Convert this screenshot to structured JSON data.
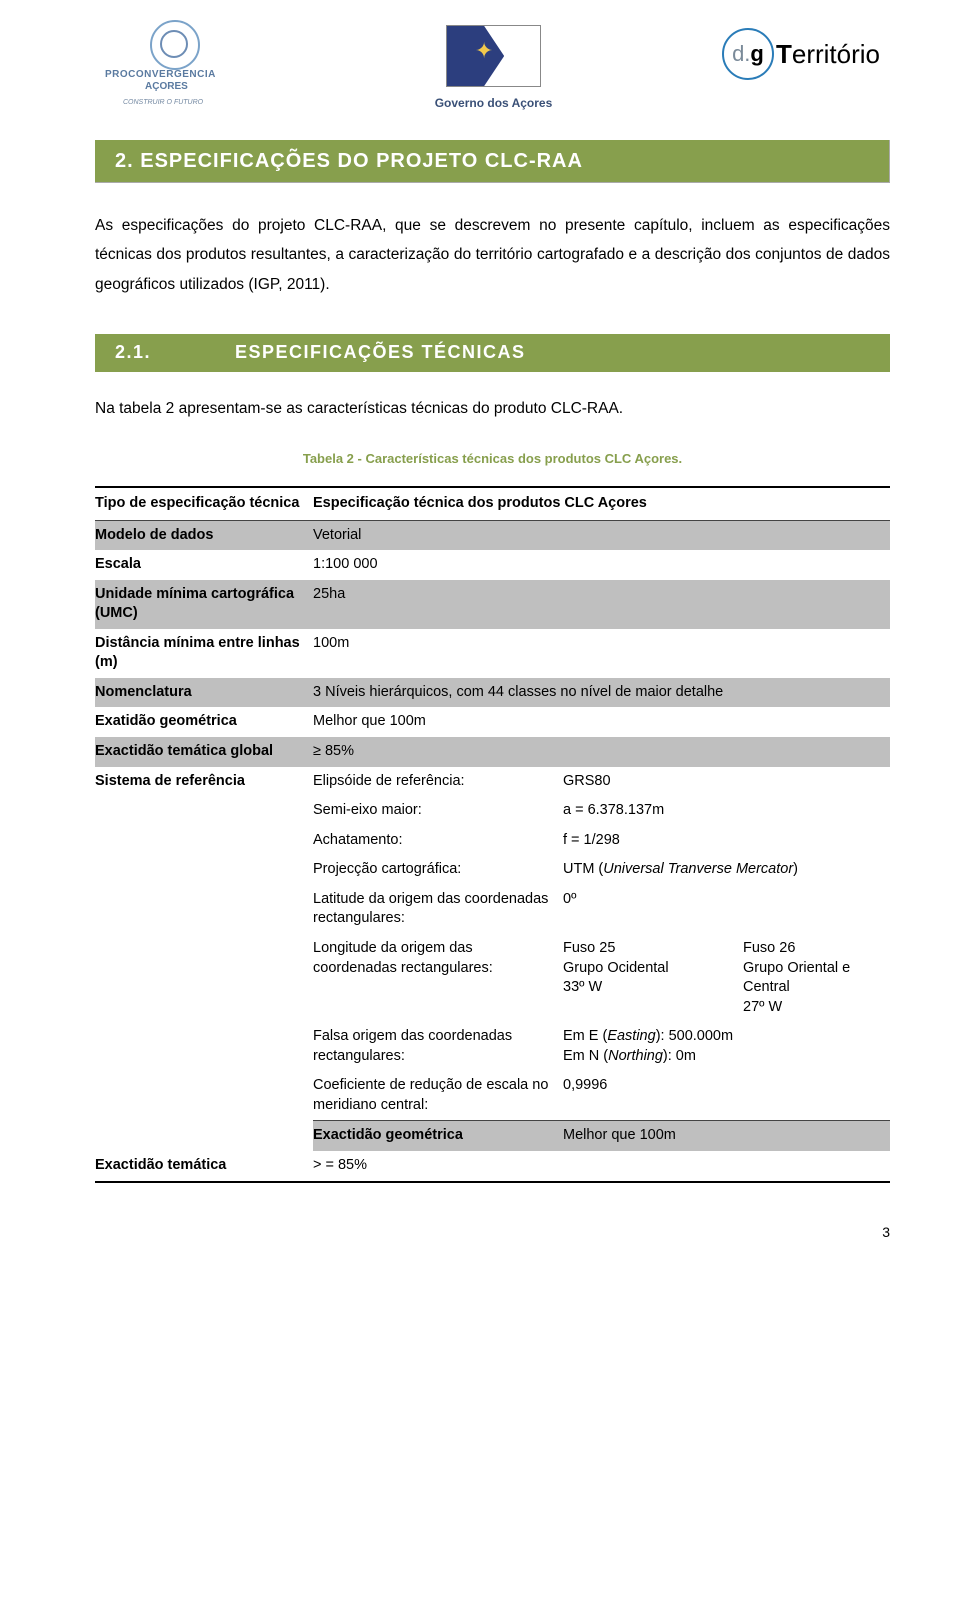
{
  "header": {
    "logo_left_line1": "PROCONVERGENCIA",
    "logo_left_line2": "AÇORES",
    "logo_left_tag": "CONSTRUIR O FUTURO",
    "gov_text": "Governo dos Açores",
    "dg_inner": "d.g",
    "dg_text": "Território"
  },
  "section": {
    "num": "2.",
    "title": "ESPECIFICAÇÕES DO PROJETO CLC-RAA"
  },
  "para1": "As especificações do projeto CLC-RAA, que se descrevem no presente capítulo, incluem as especificações técnicas dos produtos resultantes, a caracterização do território cartografado e a descrição dos conjuntos de dados geográficos utilizados (IGP, 2011).",
  "subsection": {
    "num": "2.1.",
    "title": "ESPECIFICAÇÕES TÉCNICAS"
  },
  "para2": "Na tabela 2 apresentam-se as características técnicas do produto CLC-RAA.",
  "table_caption": "Tabela 2 - Características técnicas dos produtos CLC Açores.",
  "table": {
    "header_left": "Tipo de especificação técnica",
    "header_right": "Especificação técnica dos produtos CLC Açores",
    "rows": {
      "modelo_l": "Modelo de dados",
      "modelo_v": "Vetorial",
      "escala_l": "Escala",
      "escala_v": "1:100 000",
      "umc_l": "Unidade mínima cartográfica (UMC)",
      "umc_v": "25ha",
      "dist_l": "Distância mínima entre linhas (m)",
      "dist_v": "100m",
      "nomen_l": "Nomenclatura",
      "nomen_v": "3 Níveis hierárquicos, com 44 classes no nível de maior detalhe",
      "exat_l": "Exatidão geométrica",
      "exat_v": "Melhor que 100m",
      "exact_t_l": "Exactidão temática global",
      "exact_t_v": "≥ 85%",
      "sist_l": "Sistema de referência",
      "elip_l": "Elipsóide de referência:",
      "elip_v": "GRS80",
      "semi_l": "Semi-eixo maior:",
      "semi_v": "a = 6.378.137m",
      "achat_l": "Achatamento:",
      "achat_v": "f = 1/298",
      "proj_l": "Projecção cartográfica:",
      "proj_v": "UTM (Universal Tranverse Mercator)",
      "lat_l": "Latitude da origem das coordenadas rectangulares:",
      "lat_v": "0º",
      "long_l": "Longitude da origem das coordenadas rectangulares:",
      "long_c1a": "Fuso 25",
      "long_c1b": "Grupo Ocidental",
      "long_c1c": "33º W",
      "long_c2a": "Fuso 26",
      "long_c2b": "Grupo Oriental e Central",
      "long_c2c": "27º W",
      "falsa_l": "Falsa origem das coordenadas rectangulares:",
      "falsa_v1": "Em E (Easting): 500.000m",
      "falsa_v2": "Em N (Northing): 0m",
      "coef_l": "Coeficiente de redução de escala no meridiano central:",
      "coef_v": "0,9996",
      "exgeom_l": "Exactidão geométrica",
      "exgeom_v": "Melhor que 100m",
      "extem_l": "Exactidão temática",
      "extem_v": "> = 85%"
    }
  },
  "page_number": "3",
  "colors": {
    "bar_bg": "#879f4d",
    "bar_fg": "#ffffff",
    "shade": "#bfbfbf",
    "caption": "#879f4d"
  }
}
